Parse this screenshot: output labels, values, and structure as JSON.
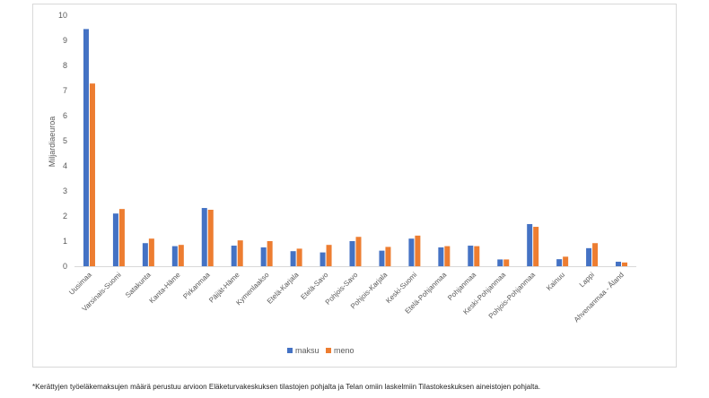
{
  "chart_data": {
    "type": "bar",
    "title": "",
    "xlabel": "",
    "ylabel": "Miljardiaeuroa",
    "ylim": [
      0,
      10
    ],
    "yticks": [
      "0",
      "1",
      "2",
      "3",
      "4",
      "5",
      "6",
      "7",
      "8",
      "9",
      "10"
    ],
    "grid": false,
    "legend_position": "bottom",
    "categories": [
      "Uusimaa",
      "Varsinais-Suomi",
      "Satakunta",
      "Kanta-Häme",
      "Pirkanmaa",
      "Päijät-Häme",
      "Kymenlaakso",
      "Etelä-Karjala",
      "Etelä-Savo",
      "Pohjois-Savo",
      "Pohjois-Karjala",
      "Keski-Suomi",
      "Etelä-Pohjanmaa",
      "Pohjanmaa",
      "Keski-Pohjanmaa",
      "Pohjois-Pohjanmaa",
      "Kainuu",
      "Lappi",
      "Ahvenanmaa - Åland"
    ],
    "series": [
      {
        "name": "maksu",
        "color": "#4472C4",
        "values": [
          9.45,
          2.1,
          0.92,
          0.8,
          2.32,
          0.82,
          0.75,
          0.6,
          0.55,
          1.0,
          0.62,
          1.1,
          0.75,
          0.82,
          0.27,
          1.68,
          0.28,
          0.72,
          0.18
        ]
      },
      {
        "name": "meno",
        "color": "#ED7D31",
        "values": [
          7.28,
          2.28,
          1.1,
          0.85,
          2.25,
          1.03,
          1.0,
          0.7,
          0.85,
          1.17,
          0.77,
          1.22,
          0.8,
          0.8,
          0.27,
          1.57,
          0.38,
          0.92,
          0.15
        ]
      }
    ]
  },
  "footnote": "*Kerättyjen työeläkemaksujen määrä perustuu arvioon Eläketurvakeskuksen tilastojen pohjalta ja Telan omiin laskelmiin  Tilastokeskuksen aineistojen pohjalta."
}
